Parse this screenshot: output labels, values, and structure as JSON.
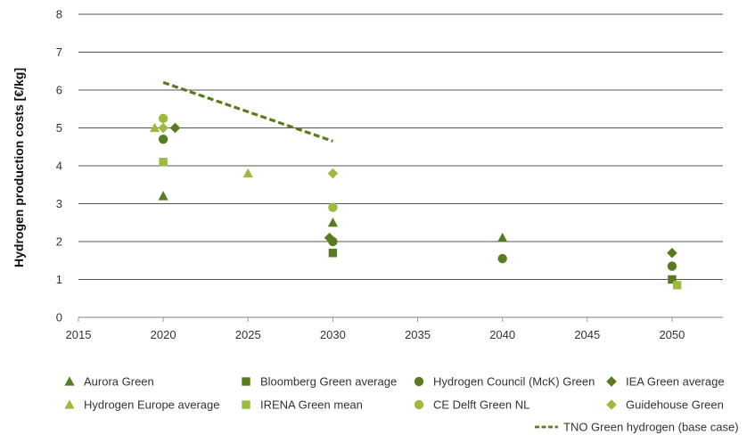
{
  "chart_data": {
    "type": "scatter",
    "title": "",
    "xlabel": "",
    "ylabel": "Hydrogen production costs [€/kg]",
    "xlim": [
      2015,
      2053
    ],
    "ylim": [
      0,
      8
    ],
    "xticks": [
      2015,
      2020,
      2025,
      2030,
      2035,
      2040,
      2045,
      2050
    ],
    "yticks": [
      0,
      1,
      2,
      3,
      4,
      5,
      6,
      7,
      8
    ],
    "grid": "horizontal",
    "legend_position": "bottom",
    "series": [
      {
        "name": "Aurora Green",
        "marker": "triangle",
        "color": "#5a7a1e",
        "points": [
          {
            "x": 2020,
            "y": 3.2
          },
          {
            "x": 2030,
            "y": 2.5
          },
          {
            "x": 2040,
            "y": 2.1
          }
        ]
      },
      {
        "name": "Bloomberg Green average",
        "marker": "square",
        "color": "#5a7a1e",
        "points": [
          {
            "x": 2030,
            "y": 1.7
          },
          {
            "x": 2050,
            "y": 1.0
          }
        ]
      },
      {
        "name": "Hydrogen Council (McK) Green",
        "marker": "circle",
        "color": "#5a7a1e",
        "points": [
          {
            "x": 2020,
            "y": 4.7
          },
          {
            "x": 2030,
            "y": 2.0
          },
          {
            "x": 2040,
            "y": 1.55
          },
          {
            "x": 2050,
            "y": 1.35
          }
        ]
      },
      {
        "name": "IEA Green average",
        "marker": "diamond",
        "color": "#5a7a1e",
        "points": [
          {
            "x": 2020.7,
            "y": 5.0
          },
          {
            "x": 2029.8,
            "y": 2.1
          },
          {
            "x": 2050,
            "y": 1.7
          }
        ]
      },
      {
        "name": "Hydrogen Europe average",
        "marker": "triangle",
        "color": "#9dba3c",
        "points": [
          {
            "x": 2019.5,
            "y": 5.0
          },
          {
            "x": 2025,
            "y": 3.8
          }
        ]
      },
      {
        "name": "IRENA Green mean",
        "marker": "square",
        "color": "#9dba3c",
        "points": [
          {
            "x": 2020,
            "y": 4.1
          },
          {
            "x": 2050.3,
            "y": 0.85
          }
        ]
      },
      {
        "name": "CE Delft Green NL",
        "marker": "circle",
        "color": "#9dba3c",
        "points": [
          {
            "x": 2020,
            "y": 5.25
          },
          {
            "x": 2030,
            "y": 2.9
          }
        ]
      },
      {
        "name": "Guidehouse Green",
        "marker": "diamond",
        "color": "#9dba3c",
        "points": [
          {
            "x": 2020,
            "y": 5.0
          },
          {
            "x": 2030,
            "y": 3.8
          }
        ]
      },
      {
        "name": "TNO Green hydrogen (base case)",
        "marker": "dashed-line",
        "color": "#5a7a1e",
        "points": [
          {
            "x": 2020,
            "y": 6.2
          },
          {
            "x": 2030,
            "y": 4.65
          }
        ]
      }
    ]
  },
  "colors": {
    "dark_green": "#5a7a1e",
    "light_green": "#9dba3c",
    "gridline": "#555555",
    "axis": "#9a9a9a"
  }
}
